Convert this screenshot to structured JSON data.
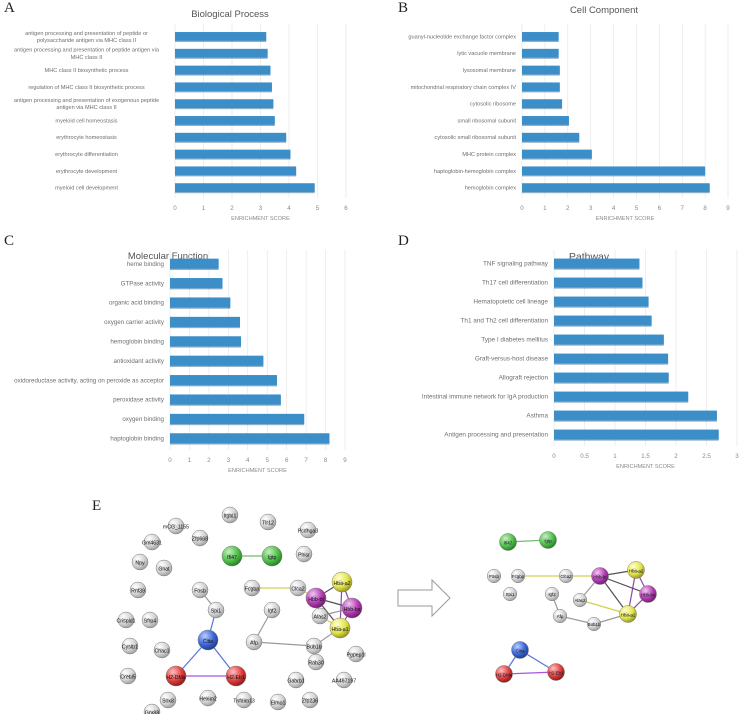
{
  "panels": {
    "A": {
      "letter": "A"
    },
    "B": {
      "letter": "B"
    },
    "C": {
      "letter": "C"
    },
    "D": {
      "letter": "D"
    },
    "E": {
      "letter": "E"
    }
  },
  "colors": {
    "bar": "#3b8ec8",
    "bar_shadow": "#2a6a9a",
    "grid": "#e3e3e3",
    "axis_text": "#8a8a8a",
    "label_text": "#6e6e6e"
  },
  "chart_data": [
    {
      "id": "A",
      "type": "bar",
      "orientation": "horizontal",
      "title": "Biological Process",
      "xlabel": "ENRICHMENT SCORE",
      "xlim": [
        0,
        6
      ],
      "xticks": [
        0,
        1,
        2,
        3,
        4,
        5,
        6
      ],
      "categories": [
        [
          "antigen processing and presentation of peptide or",
          "polysaccharide antigen via MHC class II"
        ],
        [
          "antigen processing and presentation of peptide antigen via",
          "MHC class II"
        ],
        [
          "MHC class II biosynthetic process"
        ],
        [
          "regulation of MHC class II biosynthetic process"
        ],
        [
          "antigen processing and presentation of exogenous peptide",
          "antigen via MHC class II"
        ],
        [
          "myeloid cell homeostasis"
        ],
        [
          "erythrocyte homeostasis"
        ],
        [
          "erythrocyte differentiation"
        ],
        [
          "erythrocyte development"
        ],
        [
          "myeloid cell development"
        ]
      ],
      "values": [
        3.2,
        3.25,
        3.35,
        3.4,
        3.45,
        3.5,
        3.9,
        4.05,
        4.25,
        4.9
      ]
    },
    {
      "id": "B",
      "type": "bar",
      "orientation": "horizontal",
      "title": "Cell Component",
      "xlabel": "ENRICHMENT SCORE",
      "xlim": [
        0,
        9
      ],
      "xticks": [
        0,
        1,
        2,
        3,
        4,
        5,
        6,
        7,
        8,
        9
      ],
      "categories": [
        [
          "guanyl-nucleotide exchange factor complex"
        ],
        [
          "lytic vacuole membrane"
        ],
        [
          "lysosomal membrane"
        ],
        [
          "mitochondrial respiratory chain complex IV"
        ],
        [
          "cytosolic ribosome"
        ],
        [
          "small ribosomal subunit"
        ],
        [
          "cytosolic small ribosomal subunit"
        ],
        [
          "MHC protein complex"
        ],
        [
          "haptoglobin-hemoglobin complex"
        ],
        [
          "hemoglobin complex"
        ]
      ],
      "values": [
        1.6,
        1.6,
        1.65,
        1.65,
        1.75,
        2.05,
        2.5,
        3.05,
        8.0,
        8.2
      ]
    },
    {
      "id": "C",
      "type": "bar",
      "orientation": "horizontal",
      "title": "Molecular Function",
      "xlabel": "ENRICHMENT SCORE",
      "xlim": [
        0,
        9
      ],
      "xticks": [
        0,
        1,
        2,
        3,
        4,
        5,
        6,
        7,
        8,
        9
      ],
      "categories": [
        [
          "heme binding"
        ],
        [
          "GTPase activity"
        ],
        [
          "organic acid binding"
        ],
        [
          "oxygen carrier activity"
        ],
        [
          "hemoglobin binding"
        ],
        [
          "antioxidant activity"
        ],
        [
          "oxidoreductase activity, acting on peroxide as acceptor"
        ],
        [
          "peroxidase activity"
        ],
        [
          "oxygen binding"
        ],
        [
          "haptoglobin binding"
        ]
      ],
      "values": [
        2.5,
        2.7,
        3.1,
        3.6,
        3.65,
        4.8,
        5.5,
        5.7,
        6.9,
        8.2
      ]
    },
    {
      "id": "D",
      "type": "bar",
      "orientation": "horizontal",
      "title": "Pathway",
      "xlabel": "ENRICHMENT SCORE",
      "xlim": [
        0,
        3
      ],
      "xticks": [
        0,
        0.5,
        1,
        1.5,
        2,
        2.5,
        3
      ],
      "categories": [
        [
          "TNF signaling pathway"
        ],
        [
          "Th17 cell differentiation"
        ],
        [
          "Hematopoietic cell lineage"
        ],
        [
          "Th1 and Th2 cell differentiation"
        ],
        [
          "Type I diabetes mellitus"
        ],
        [
          "Graft-versus-host disease"
        ],
        [
          "Allograft rejection"
        ],
        [
          "Intestinal immune network for IgA production"
        ],
        [
          "Asthma"
        ],
        [
          "Antigen processing and presentation"
        ]
      ],
      "values": [
        1.4,
        1.45,
        1.55,
        1.6,
        1.8,
        1.87,
        1.88,
        2.2,
        2.67,
        2.7
      ]
    }
  ],
  "network_left": {
    "nodes": [
      {
        "label": "mCG_1155",
        "color": "grey"
      },
      {
        "label": "Itgbl1",
        "color": "grey"
      },
      {
        "label": "Tlr12",
        "color": "grey"
      },
      {
        "label": "Pcdhga3",
        "color": "grey"
      },
      {
        "label": "Gm4631",
        "color": "grey"
      },
      {
        "label": "Zfp668",
        "color": "grey"
      },
      {
        "label": "Ifi47",
        "color": "green"
      },
      {
        "label": "Igtp",
        "color": "green"
      },
      {
        "label": "Pnisr",
        "color": "grey"
      },
      {
        "label": "Npy",
        "color": "grey"
      },
      {
        "label": "Gnat",
        "color": "grey"
      },
      {
        "label": "Fcgbp",
        "color": "grey"
      },
      {
        "label": "Clca2",
        "color": "grey"
      },
      {
        "label": "Hba-a2",
        "color": "yellow"
      },
      {
        "label": "Hbb-bt",
        "color": "purple"
      },
      {
        "label": "Rnf39",
        "color": "grey"
      },
      {
        "label": "Fosb",
        "color": "grey"
      },
      {
        "label": "Hbb-bs",
        "color": "purple"
      },
      {
        "label": "Alas2",
        "color": "grey"
      },
      {
        "label": "Spi1",
        "color": "grey"
      },
      {
        "label": "Igf2",
        "color": "grey"
      },
      {
        "label": "Hba-a1",
        "color": "yellow"
      },
      {
        "label": "Crispld1",
        "color": "grey"
      },
      {
        "label": "Sfrp4",
        "color": "grey"
      },
      {
        "label": "Ciita",
        "color": "blue"
      },
      {
        "label": "Afp",
        "color": "grey"
      },
      {
        "label": "Bub1b",
        "color": "grey"
      },
      {
        "label": "Pgpep1l",
        "color": "grey"
      },
      {
        "label": "Cysltr1",
        "color": "grey"
      },
      {
        "label": "Chac1",
        "color": "grey"
      },
      {
        "label": "Rab30",
        "color": "grey"
      },
      {
        "label": "H2-DMa",
        "color": "red"
      },
      {
        "label": "H2-Eb1",
        "color": "red"
      },
      {
        "label": "Gabrb1",
        "color": "grey"
      },
      {
        "label": "AA467197",
        "color": "grey"
      },
      {
        "label": "Crebl5",
        "color": "grey"
      },
      {
        "label": "Sox8",
        "color": "grey"
      },
      {
        "label": "Gpr88",
        "color": "grey"
      },
      {
        "label": "Hexim2",
        "color": "grey"
      },
      {
        "label": "Tnfaim13",
        "color": "grey"
      },
      {
        "label": "Elmo1",
        "color": "grey"
      },
      {
        "label": "Zfp236",
        "color": "grey"
      }
    ]
  },
  "network_right": {
    "nodes": [
      {
        "label": "Ifi47",
        "color": "green"
      },
      {
        "label": "Igtp",
        "color": "green"
      },
      {
        "label": "Fosb",
        "color": "grey"
      },
      {
        "label": "Fcgbp",
        "color": "grey"
      },
      {
        "label": "Clca2",
        "color": "grey"
      },
      {
        "label": "Hbb-bt",
        "color": "purple"
      },
      {
        "label": "Hba-a2",
        "color": "yellow"
      },
      {
        "label": "Spi1",
        "color": "grey"
      },
      {
        "label": "Igf2",
        "color": "grey"
      },
      {
        "label": "Hbb-bs",
        "color": "purple"
      },
      {
        "label": "Alas2",
        "color": "grey"
      },
      {
        "label": "Afp",
        "color": "grey"
      },
      {
        "label": "Hba-a1",
        "color": "yellow"
      },
      {
        "label": "Bub1b",
        "color": "grey"
      },
      {
        "label": "Ciita",
        "color": "blue"
      },
      {
        "label": "H2-DMa",
        "color": "red"
      },
      {
        "label": "H2-Eb1",
        "color": "red"
      }
    ]
  }
}
